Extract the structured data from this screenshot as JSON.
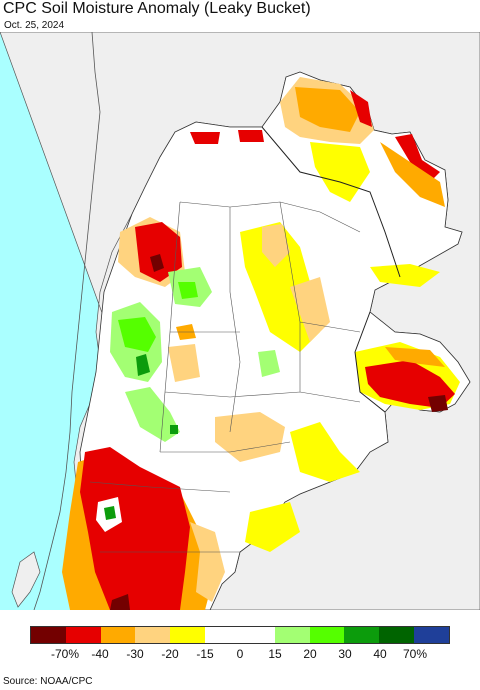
{
  "header": {
    "title": "CPC Soil Moisture Anomaly (Leaky Bucket)",
    "date": "Oct. 25, 2024"
  },
  "map": {
    "ocean_color": "#aaffff",
    "land_outside_color": "#efefef",
    "region_base_color": "#ffffff"
  },
  "legend": {
    "colors": [
      "#730000",
      "#e60000",
      "#ffaa00",
      "#ffd37f",
      "#ffff00",
      "#ffffff",
      "#ffffff",
      "#a3ff73",
      "#55ff00",
      "#0c9c0c",
      "#006400",
      "#1f3f99"
    ],
    "labels": [
      "-70%",
      "-40",
      "-30",
      "-20",
      "-15",
      "0",
      "15",
      "20",
      "30",
      "40",
      "70%"
    ]
  },
  "footer": {
    "source": "Source: NOAA/CPC"
  }
}
